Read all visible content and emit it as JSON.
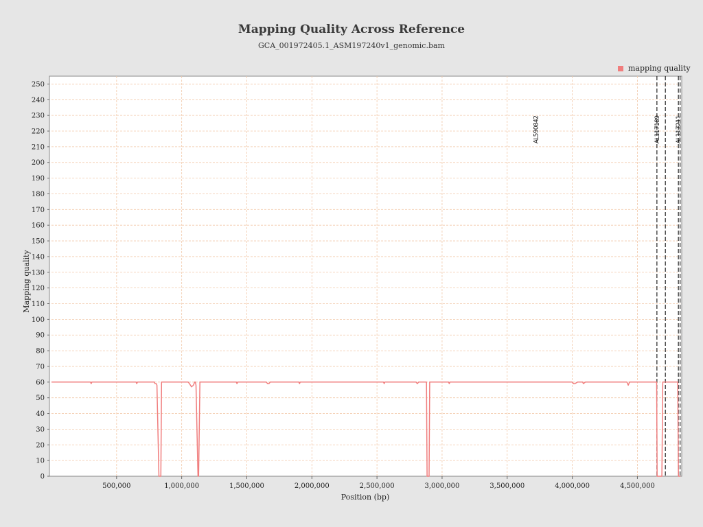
{
  "chart_data": {
    "type": "line",
    "title": "Mapping Quality Across Reference",
    "subtitle": "GCA_001972405.1_ASM197240v1_genomic.bam",
    "xlabel": "Position (bp)",
    "ylabel": "Mapping quality",
    "xlim": [
      0,
      4830000
    ],
    "ylim": [
      0,
      255
    ],
    "grid": true,
    "legend_position": "top-right",
    "x_ticks": [
      {
        "value": 500000,
        "label": "500,000"
      },
      {
        "value": 1000000,
        "label": "1,000,000"
      },
      {
        "value": 1500000,
        "label": "1,500,000"
      },
      {
        "value": 2000000,
        "label": "2,000,000"
      },
      {
        "value": 2500000,
        "label": "2,500,000"
      },
      {
        "value": 3000000,
        "label": "3,000,000"
      },
      {
        "value": 3500000,
        "label": "3,500,000"
      },
      {
        "value": 4000000,
        "label": "4,000,000"
      },
      {
        "value": 4500000,
        "label": "4,500,000"
      }
    ],
    "y_ticks": [
      0,
      10,
      20,
      30,
      40,
      50,
      60,
      70,
      80,
      90,
      100,
      110,
      120,
      130,
      140,
      150,
      160,
      170,
      180,
      190,
      200,
      210,
      220,
      230,
      240,
      250
    ],
    "contigs": [
      {
        "label": "AL590842",
        "position": 3720000,
        "line": false
      },
      {
        "label": "AL117189",
        "position": 4650000,
        "line": true
      },
      {
        "label": "",
        "position": 4715000,
        "line": true
      },
      {
        "label": "AL117211",
        "position": 4815000,
        "line": true
      },
      {
        "label": "",
        "position": 4828000,
        "line": true
      }
    ],
    "series": [
      {
        "name": "mapping quality",
        "color": "#f07d7d",
        "x": [
          0,
          300000,
          305000,
          310000,
          650000,
          655000,
          660000,
          790000,
          795000,
          805000,
          810000,
          825000,
          840000,
          845000,
          860000,
          865000,
          1050000,
          1060000,
          1075000,
          1090000,
          1100000,
          1105000,
          1110000,
          1125000,
          1130000,
          1140000,
          1145000,
          1420000,
          1425000,
          1430000,
          1650000,
          1660000,
          1670000,
          1680000,
          1900000,
          1905000,
          1910000,
          2550000,
          2555000,
          2560000,
          2800000,
          2810000,
          2820000,
          2850000,
          2860000,
          2880000,
          2885000,
          2900000,
          2905000,
          3050000,
          3055000,
          3060000,
          4000000,
          4010000,
          4020000,
          4040000,
          4080000,
          4085000,
          4100000,
          4420000,
          4430000,
          4440000,
          4640000,
          4648000,
          4652000,
          4680000,
          4688000,
          4695000,
          4705000,
          4712000,
          4720000,
          4800000,
          4810000,
          4815000,
          4830000
        ],
        "values": [
          60,
          60,
          59,
          60,
          60,
          59,
          60,
          60,
          59,
          59,
          58,
          0,
          0,
          60,
          60,
          60,
          60,
          59,
          57,
          58,
          60,
          60,
          58,
          0,
          0,
          60,
          60,
          60,
          59,
          60,
          60,
          59,
          59,
          60,
          60,
          59,
          60,
          60,
          59,
          60,
          60,
          59,
          60,
          60,
          60,
          60,
          0,
          0,
          60,
          60,
          59,
          60,
          60,
          59,
          59,
          60,
          60,
          59,
          60,
          60,
          58,
          60,
          60,
          60,
          0,
          0,
          0,
          60,
          60,
          60,
          60,
          60,
          60,
          0,
          0
        ]
      }
    ]
  }
}
